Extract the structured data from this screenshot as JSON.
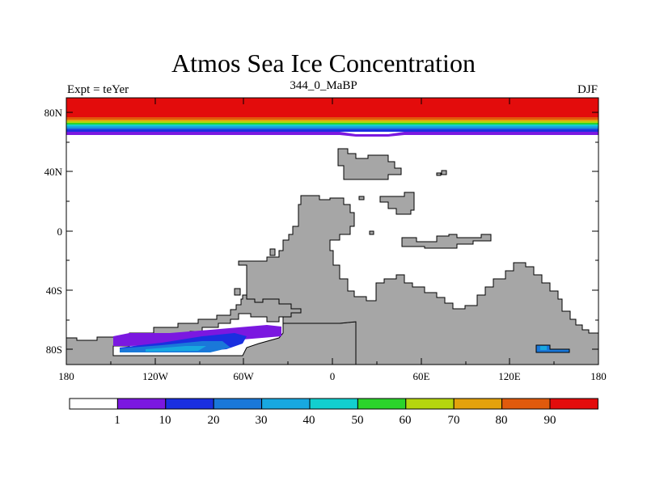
{
  "title": "Atmos Sea Ice Concentration",
  "subtitle": "344_0_MaBP",
  "left_label": "Expt = teYer",
  "right_label": "DJF",
  "y_ticks": [
    "80N",
    "40N",
    "0",
    "40S",
    "80S"
  ],
  "x_ticks": [
    "180",
    "120W",
    "60W",
    "0",
    "60E",
    "120E",
    "180"
  ],
  "colorbar": {
    "levels": [
      "1",
      "10",
      "20",
      "30",
      "40",
      "50",
      "60",
      "70",
      "80",
      "90"
    ],
    "colors": [
      "#ffffff",
      "#7b18e0",
      "#1a2fe0",
      "#1a78d9",
      "#18a8e0",
      "#12cfcf",
      "#2bd42b",
      "#b5d60e",
      "#e3a20c",
      "#e05a0c",
      "#e30c0c"
    ]
  },
  "colors": {
    "land": "#a6a6a6",
    "ice_max": "#e30c0c"
  }
}
